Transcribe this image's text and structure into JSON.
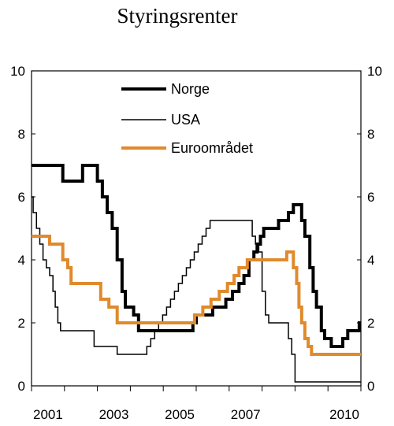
{
  "chart_data": {
    "type": "line",
    "title": "Styringsrenter",
    "xlabel": "",
    "ylabel": "",
    "xlim": [
      2000.0,
      2010.0
    ],
    "ylim": [
      0,
      10
    ],
    "x_ticks": [
      2001,
      2003,
      2005,
      2007,
      2010
    ],
    "y_ticks": [
      0,
      2,
      4,
      6,
      8,
      10
    ],
    "grid": false,
    "legend_position": "top-left",
    "series": [
      {
        "name": "Norge",
        "color": "#000000",
        "width": "thick",
        "points": [
          [
            2000.0,
            7.0
          ],
          [
            2000.95,
            7.0
          ],
          [
            2000.95,
            6.5
          ],
          [
            2001.55,
            6.5
          ],
          [
            2001.55,
            7.0
          ],
          [
            2002.0,
            7.0
          ],
          [
            2002.0,
            6.5
          ],
          [
            2002.15,
            6.5
          ],
          [
            2002.15,
            6.0
          ],
          [
            2002.3,
            6.0
          ],
          [
            2002.3,
            5.5
          ],
          [
            2002.45,
            5.5
          ],
          [
            2002.45,
            5.0
          ],
          [
            2002.6,
            5.0
          ],
          [
            2002.6,
            4.0
          ],
          [
            2002.75,
            4.0
          ],
          [
            2002.75,
            3.0
          ],
          [
            2002.85,
            3.0
          ],
          [
            2002.85,
            2.5
          ],
          [
            2003.1,
            2.5
          ],
          [
            2003.1,
            2.25
          ],
          [
            2003.25,
            2.25
          ],
          [
            2003.25,
            1.75
          ],
          [
            2004.9,
            1.75
          ],
          [
            2004.9,
            2.0
          ],
          [
            2005.0,
            2.0
          ],
          [
            2005.0,
            2.25
          ],
          [
            2005.5,
            2.25
          ],
          [
            2005.5,
            2.5
          ],
          [
            2005.9,
            2.5
          ],
          [
            2005.9,
            2.75
          ],
          [
            2006.1,
            2.75
          ],
          [
            2006.1,
            3.0
          ],
          [
            2006.3,
            3.0
          ],
          [
            2006.3,
            3.25
          ],
          [
            2006.45,
            3.25
          ],
          [
            2006.45,
            3.5
          ],
          [
            2006.6,
            3.5
          ],
          [
            2006.6,
            4.0
          ],
          [
            2006.75,
            4.0
          ],
          [
            2006.75,
            4.25
          ],
          [
            2006.85,
            4.25
          ],
          [
            2006.85,
            4.5
          ],
          [
            2006.95,
            4.5
          ],
          [
            2006.95,
            4.75
          ],
          [
            2007.05,
            4.75
          ],
          [
            2007.05,
            5.0
          ],
          [
            2007.5,
            5.0
          ],
          [
            2007.5,
            5.25
          ],
          [
            2007.8,
            5.25
          ],
          [
            2007.8,
            5.5
          ],
          [
            2007.95,
            5.5
          ],
          [
            2007.95,
            5.75
          ],
          [
            2008.2,
            5.75
          ],
          [
            2008.2,
            5.25
          ],
          [
            2008.3,
            5.25
          ],
          [
            2008.3,
            4.75
          ],
          [
            2008.45,
            4.75
          ],
          [
            2008.45,
            3.75
          ],
          [
            2008.55,
            3.75
          ],
          [
            2008.55,
            3.0
          ],
          [
            2008.65,
            3.0
          ],
          [
            2008.65,
            2.5
          ],
          [
            2008.8,
            2.5
          ],
          [
            2008.8,
            1.75
          ],
          [
            2008.9,
            1.75
          ],
          [
            2008.9,
            1.5
          ],
          [
            2009.1,
            1.5
          ],
          [
            2009.1,
            1.25
          ],
          [
            2009.45,
            1.25
          ],
          [
            2009.45,
            1.5
          ],
          [
            2009.6,
            1.5
          ],
          [
            2009.6,
            1.75
          ],
          [
            2009.95,
            1.75
          ],
          [
            2009.95,
            2.0
          ],
          [
            2010.0,
            2.0
          ]
        ]
      },
      {
        "name": "USA",
        "color": "#000000",
        "width": "thin",
        "points": [
          [
            2000.0,
            6.0
          ],
          [
            2000.05,
            6.0
          ],
          [
            2000.05,
            5.5
          ],
          [
            2000.15,
            5.5
          ],
          [
            2000.15,
            5.0
          ],
          [
            2000.25,
            5.0
          ],
          [
            2000.25,
            4.5
          ],
          [
            2000.35,
            4.5
          ],
          [
            2000.35,
            4.0
          ],
          [
            2000.45,
            4.0
          ],
          [
            2000.45,
            3.75
          ],
          [
            2000.55,
            3.75
          ],
          [
            2000.55,
            3.5
          ],
          [
            2000.65,
            3.5
          ],
          [
            2000.65,
            3.0
          ],
          [
            2000.72,
            3.0
          ],
          [
            2000.72,
            2.5
          ],
          [
            2000.8,
            2.5
          ],
          [
            2000.8,
            2.0
          ],
          [
            2000.88,
            2.0
          ],
          [
            2000.88,
            1.75
          ],
          [
            2001.9,
            1.75
          ],
          [
            2001.9,
            1.25
          ],
          [
            2002.6,
            1.25
          ],
          [
            2002.6,
            1.0
          ],
          [
            2003.5,
            1.0
          ],
          [
            2003.5,
            1.25
          ],
          [
            2003.62,
            1.25
          ],
          [
            2003.62,
            1.5
          ],
          [
            2003.74,
            1.5
          ],
          [
            2003.74,
            1.75
          ],
          [
            2003.86,
            1.75
          ],
          [
            2003.86,
            2.0
          ],
          [
            2003.98,
            2.0
          ],
          [
            2003.98,
            2.25
          ],
          [
            2004.1,
            2.25
          ],
          [
            2004.1,
            2.5
          ],
          [
            2004.22,
            2.5
          ],
          [
            2004.22,
            2.75
          ],
          [
            2004.34,
            2.75
          ],
          [
            2004.34,
            3.0
          ],
          [
            2004.46,
            3.0
          ],
          [
            2004.46,
            3.25
          ],
          [
            2004.58,
            3.25
          ],
          [
            2004.58,
            3.5
          ],
          [
            2004.7,
            3.5
          ],
          [
            2004.7,
            3.75
          ],
          [
            2004.82,
            3.75
          ],
          [
            2004.82,
            4.0
          ],
          [
            2004.94,
            4.0
          ],
          [
            2004.94,
            4.25
          ],
          [
            2005.06,
            4.25
          ],
          [
            2005.06,
            4.5
          ],
          [
            2005.18,
            4.5
          ],
          [
            2005.18,
            4.75
          ],
          [
            2005.3,
            4.75
          ],
          [
            2005.3,
            5.0
          ],
          [
            2005.42,
            5.0
          ],
          [
            2005.42,
            5.25
          ],
          [
            2006.7,
            5.25
          ],
          [
            2006.7,
            4.75
          ],
          [
            2006.8,
            4.75
          ],
          [
            2006.8,
            4.5
          ],
          [
            2006.9,
            4.5
          ],
          [
            2006.9,
            4.25
          ],
          [
            2007.0,
            4.25
          ],
          [
            2007.0,
            3.0
          ],
          [
            2007.1,
            3.0
          ],
          [
            2007.1,
            2.25
          ],
          [
            2007.2,
            2.25
          ],
          [
            2007.2,
            2.0
          ],
          [
            2007.8,
            2.0
          ],
          [
            2007.8,
            1.5
          ],
          [
            2007.9,
            1.5
          ],
          [
            2007.9,
            1.0
          ],
          [
            2008.0,
            1.0
          ],
          [
            2008.0,
            0.125
          ],
          [
            2010.0,
            0.125
          ]
        ]
      },
      {
        "name": "Euroområdet",
        "color": "#e08a2c",
        "width": "thick",
        "points": [
          [
            2000.0,
            4.75
          ],
          [
            2000.55,
            4.75
          ],
          [
            2000.55,
            4.5
          ],
          [
            2000.95,
            4.5
          ],
          [
            2000.95,
            4.0
          ],
          [
            2001.1,
            4.0
          ],
          [
            2001.1,
            3.75
          ],
          [
            2001.2,
            3.75
          ],
          [
            2001.2,
            3.25
          ],
          [
            2002.1,
            3.25
          ],
          [
            2002.1,
            2.75
          ],
          [
            2002.35,
            2.75
          ],
          [
            2002.35,
            2.5
          ],
          [
            2002.6,
            2.5
          ],
          [
            2002.6,
            2.0
          ],
          [
            2004.95,
            2.0
          ],
          [
            2004.95,
            2.25
          ],
          [
            2005.2,
            2.25
          ],
          [
            2005.2,
            2.5
          ],
          [
            2005.45,
            2.5
          ],
          [
            2005.45,
            2.75
          ],
          [
            2005.7,
            2.75
          ],
          [
            2005.7,
            3.0
          ],
          [
            2005.95,
            3.0
          ],
          [
            2005.95,
            3.25
          ],
          [
            2006.15,
            3.25
          ],
          [
            2006.15,
            3.5
          ],
          [
            2006.3,
            3.5
          ],
          [
            2006.3,
            3.75
          ],
          [
            2006.55,
            3.75
          ],
          [
            2006.55,
            4.0
          ],
          [
            2007.75,
            4.0
          ],
          [
            2007.75,
            4.25
          ],
          [
            2007.95,
            4.25
          ],
          [
            2007.95,
            3.75
          ],
          [
            2008.05,
            3.75
          ],
          [
            2008.05,
            3.25
          ],
          [
            2008.12,
            3.25
          ],
          [
            2008.12,
            2.5
          ],
          [
            2008.2,
            2.5
          ],
          [
            2008.2,
            2.0
          ],
          [
            2008.3,
            2.0
          ],
          [
            2008.3,
            1.5
          ],
          [
            2008.4,
            1.5
          ],
          [
            2008.4,
            1.25
          ],
          [
            2008.5,
            1.25
          ],
          [
            2008.5,
            1.0
          ],
          [
            2010.0,
            1.0
          ]
        ]
      }
    ]
  }
}
